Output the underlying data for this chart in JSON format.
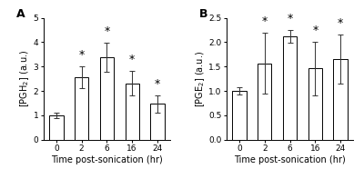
{
  "panel_A": {
    "label": "A",
    "categories": [
      "0",
      "2",
      "6",
      "16",
      "24"
    ],
    "values": [
      1.0,
      2.55,
      3.38,
      2.32,
      1.47
    ],
    "errors": [
      0.12,
      0.45,
      0.6,
      0.52,
      0.35
    ],
    "ylabel": "[PGH$_2$] (a.u.)",
    "xlabel": "Time post-sonication (hr)",
    "ylim": [
      0,
      5
    ],
    "yticks": [
      0,
      1,
      2,
      3,
      4,
      5
    ],
    "significant": [
      false,
      true,
      true,
      true,
      true
    ]
  },
  "panel_B": {
    "label": "B",
    "categories": [
      "0",
      "2",
      "6",
      "16",
      "24"
    ],
    "values": [
      1.0,
      1.57,
      2.12,
      1.46,
      1.66
    ],
    "errors": [
      0.07,
      0.62,
      0.13,
      0.55,
      0.5
    ],
    "ylabel": "[PGE$_2$] (a.u.)",
    "xlabel": "Time post-sonication (hr)",
    "ylim": [
      0,
      2.5
    ],
    "yticks": [
      0.0,
      0.5,
      1.0,
      1.5,
      2.0,
      2.5
    ],
    "significant": [
      false,
      true,
      true,
      true,
      true
    ]
  },
  "bar_color": "#ffffff",
  "bar_edgecolor": "#000000",
  "bar_width": 0.55,
  "capsize": 2.5,
  "error_color": "#555555",
  "background_color": "#ffffff",
  "star_fontsize": 9,
  "label_fontsize": 7,
  "tick_fontsize": 6.5,
  "panel_label_fontsize": 9
}
